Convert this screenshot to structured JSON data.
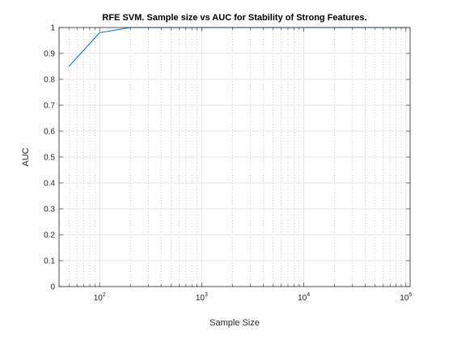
{
  "chart_data": {
    "type": "line",
    "title": "RFE SVM. Sample size vs AUC for Stability of Strong Features.",
    "xlabel": "Sample Size",
    "ylabel": "AUC",
    "xscale": "log",
    "xlim": [
      40,
      110000
    ],
    "ylim": [
      0,
      1
    ],
    "grid": true,
    "legend": "none",
    "x_ticks": [
      {
        "value": 100,
        "base": "10",
        "exp": "2"
      },
      {
        "value": 1000,
        "base": "10",
        "exp": "3"
      },
      {
        "value": 10000,
        "base": "10",
        "exp": "4"
      },
      {
        "value": 100000,
        "base": "10",
        "exp": "5"
      }
    ],
    "y_ticks": [
      {
        "value": 0,
        "label": "0"
      },
      {
        "value": 0.1,
        "label": "0.1"
      },
      {
        "value": 0.2,
        "label": "0.2"
      },
      {
        "value": 0.3,
        "label": "0.3"
      },
      {
        "value": 0.4,
        "label": "0.4"
      },
      {
        "value": 0.5,
        "label": "0.5"
      },
      {
        "value": 0.6,
        "label": "0.6"
      },
      {
        "value": 0.7,
        "label": "0.7"
      },
      {
        "value": 0.8,
        "label": "0.8"
      },
      {
        "value": 0.9,
        "label": "0.9"
      },
      {
        "value": 1,
        "label": "1"
      }
    ],
    "series": [
      {
        "color": "#0072bd",
        "x": [
          50,
          100,
          200,
          500,
          1000,
          2000,
          5000,
          10000,
          20000,
          50000,
          100000
        ],
        "y": [
          0.85,
          0.98,
          1.0,
          1.0,
          1.0,
          1.0,
          1.0,
          1.0,
          1.0,
          1.0,
          1.0
        ]
      }
    ]
  }
}
